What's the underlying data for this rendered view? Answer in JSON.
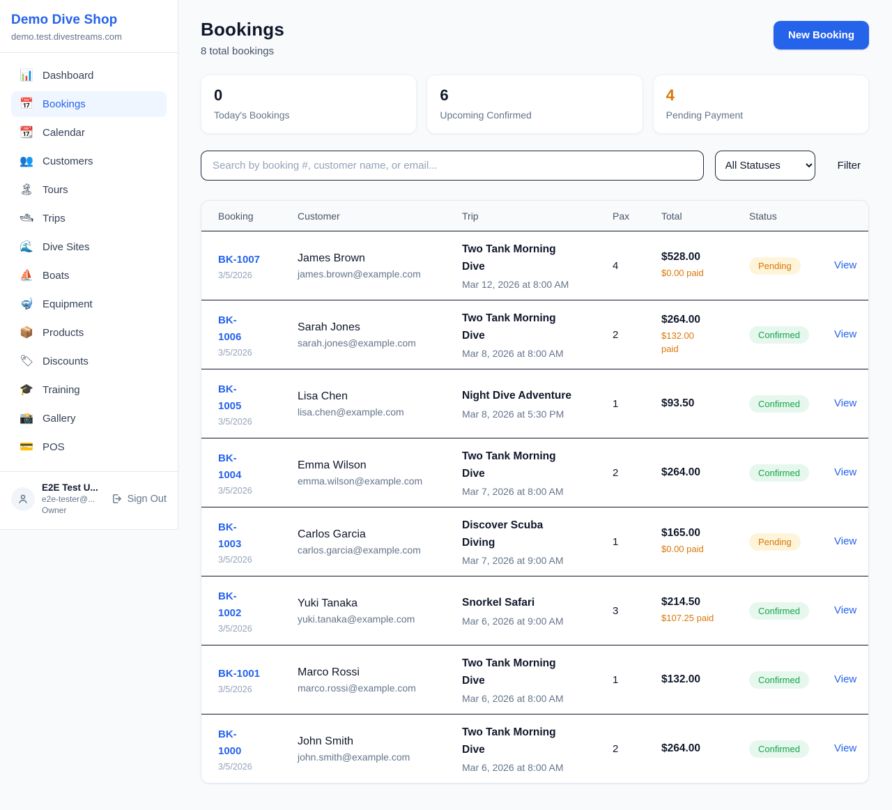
{
  "shop": {
    "name": "Demo Dive Shop",
    "domain": "demo.test.divestreams.com"
  },
  "sidebar": {
    "items": [
      {
        "label": "Dashboard",
        "icon": "📊",
        "icon_name": "dashboard-icon",
        "active": false
      },
      {
        "label": "Bookings",
        "icon": "📅",
        "icon_name": "bookings-icon",
        "active": true
      },
      {
        "label": "Calendar",
        "icon": "📆",
        "icon_name": "calendar-icon",
        "active": false
      },
      {
        "label": "Customers",
        "icon": "👥",
        "icon_name": "customers-icon",
        "active": false
      },
      {
        "label": "Tours",
        "icon": "🏝",
        "icon_name": "tours-icon",
        "active": false
      },
      {
        "label": "Trips",
        "icon": "🛥",
        "icon_name": "trips-icon",
        "active": false
      },
      {
        "label": "Dive Sites",
        "icon": "🌊",
        "icon_name": "dive-sites-icon",
        "active": false
      },
      {
        "label": "Boats",
        "icon": "⛵",
        "icon_name": "boats-icon",
        "active": false
      },
      {
        "label": "Equipment",
        "icon": "🤿",
        "icon_name": "equipment-icon",
        "active": false
      },
      {
        "label": "Products",
        "icon": "📦",
        "icon_name": "products-icon",
        "active": false
      },
      {
        "label": "Discounts",
        "icon": "🏷",
        "icon_name": "discounts-icon",
        "active": false
      },
      {
        "label": "Training",
        "icon": "🎓",
        "icon_name": "training-icon",
        "active": false
      },
      {
        "label": "Gallery",
        "icon": "📸",
        "icon_name": "gallery-icon",
        "active": false
      },
      {
        "label": "POS",
        "icon": "💳",
        "icon_name": "pos-icon",
        "active": false
      }
    ],
    "user": {
      "name": "E2E Test U...",
      "email": "e2e-tester@...",
      "role": "Owner",
      "sign_out_label": "Sign Out"
    }
  },
  "header": {
    "title": "Bookings",
    "subtitle": "8 total bookings",
    "new_booking_label": "New Booking"
  },
  "stats": [
    {
      "value": "0",
      "label": "Today's Bookings",
      "accent": null
    },
    {
      "value": "6",
      "label": "Upcoming Confirmed",
      "accent": null
    },
    {
      "value": "4",
      "label": "Pending Payment",
      "accent": "#d97706"
    }
  ],
  "filters": {
    "search_placeholder": "Search by booking #, customer name, or email...",
    "status_selected": "All Statuses",
    "filter_label": "Filter"
  },
  "table": {
    "columns": [
      "Booking",
      "Customer",
      "Trip",
      "Pax",
      "Total",
      "Status",
      ""
    ],
    "action_label": "View",
    "rows": [
      {
        "id": "BK-1007",
        "date": "3/5/2026",
        "customer": "James Brown",
        "email": "james.brown@example.com",
        "trip": "Two Tank Morning\nDive",
        "trip_time": "Mar 12, 2026 at 8:00 AM",
        "pax": "4",
        "total": "$528.00",
        "paid": "$0.00 paid",
        "status": "Pending"
      },
      {
        "id": "BK-\n1006",
        "date": "3/5/2026",
        "customer": "Sarah Jones",
        "email": "sarah.jones@example.com",
        "trip": "Two Tank Morning\nDive",
        "trip_time": "Mar 8, 2026 at 8:00 AM",
        "pax": "2",
        "total": "$264.00",
        "paid": "$132.00\npaid",
        "status": "Confirmed"
      },
      {
        "id": "BK-\n1005",
        "date": "3/5/2026",
        "customer": "Lisa Chen",
        "email": "lisa.chen@example.com",
        "trip": "Night Dive Adventure",
        "trip_time": "Mar 8, 2026 at 5:30 PM",
        "pax": "1",
        "total": "$93.50",
        "paid": null,
        "status": "Confirmed"
      },
      {
        "id": "BK-\n1004",
        "date": "3/5/2026",
        "customer": "Emma Wilson",
        "email": "emma.wilson@example.com",
        "trip": "Two Tank Morning\nDive",
        "trip_time": "Mar 7, 2026 at 8:00 AM",
        "pax": "2",
        "total": "$264.00",
        "paid": null,
        "status": "Confirmed"
      },
      {
        "id": "BK-\n1003",
        "date": "3/5/2026",
        "customer": "Carlos Garcia",
        "email": "carlos.garcia@example.com",
        "trip": "Discover Scuba\nDiving",
        "trip_time": "Mar 7, 2026 at 9:00 AM",
        "pax": "1",
        "total": "$165.00",
        "paid": "$0.00 paid",
        "status": "Pending"
      },
      {
        "id": "BK-\n1002",
        "date": "3/5/2026",
        "customer": "Yuki Tanaka",
        "email": "yuki.tanaka@example.com",
        "trip": "Snorkel Safari",
        "trip_time": "Mar 6, 2026 at 9:00 AM",
        "pax": "3",
        "total": "$214.50",
        "paid": "$107.25 paid",
        "status": "Confirmed"
      },
      {
        "id": "BK-1001",
        "date": "3/5/2026",
        "customer": "Marco Rossi",
        "email": "marco.rossi@example.com",
        "trip": "Two Tank Morning\nDive",
        "trip_time": "Mar 6, 2026 at 8:00 AM",
        "pax": "1",
        "total": "$132.00",
        "paid": null,
        "status": "Confirmed"
      },
      {
        "id": "BK-\n1000",
        "date": "3/5/2026",
        "customer": "John Smith",
        "email": "john.smith@example.com",
        "trip": "Two Tank Morning\nDive",
        "trip_time": "Mar 6, 2026 at 8:00 AM",
        "pax": "2",
        "total": "$264.00",
        "paid": null,
        "status": "Confirmed"
      }
    ]
  },
  "colors": {
    "brand_blue": "#2563eb",
    "pending_text": "#d97706",
    "pending_bg": "#fdf4da",
    "confirmed_text": "#16a34a",
    "confirmed_bg": "#e6f7ed",
    "page_bg": "#f8fafc"
  }
}
